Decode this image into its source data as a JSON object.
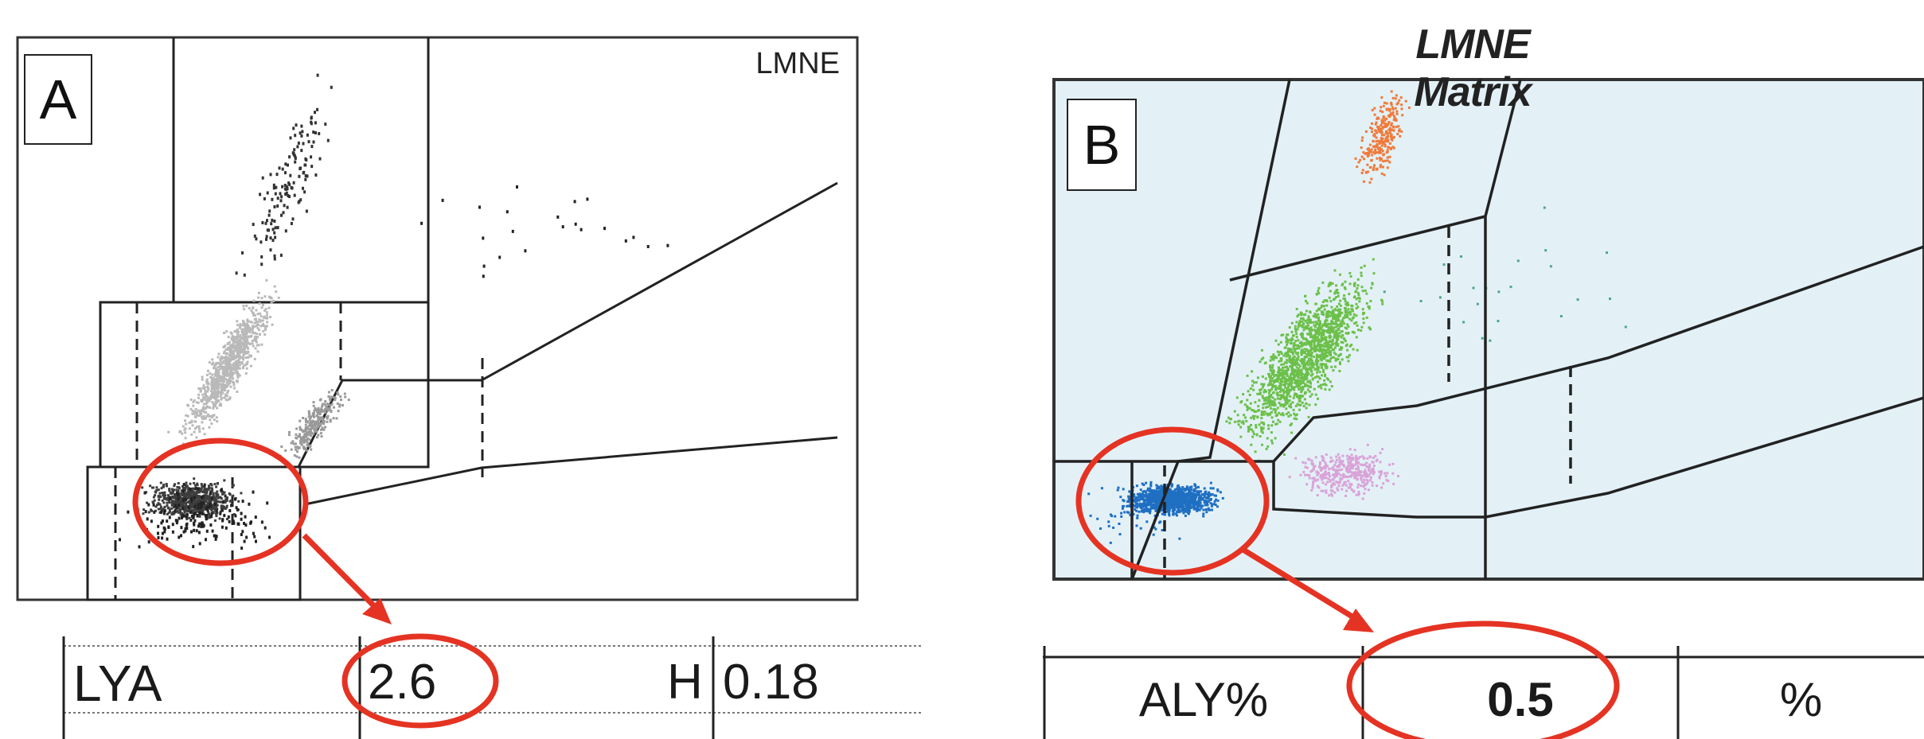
{
  "panel_a": {
    "letter": "A",
    "plot_label": "LMNE",
    "table": {
      "param": "LYA",
      "value": "2.6",
      "flag": "H",
      "extra": "0.18"
    }
  },
  "panel_b": {
    "letter": "B",
    "title": "LMNE Matrix",
    "table": {
      "param": "ALY%",
      "value": "0.5",
      "unit": "%"
    }
  },
  "colors": {
    "annotation_red": "#e53323",
    "matrix_background": "#e3f1f7",
    "cluster_orange": "#f07a3a",
    "cluster_green": "#6cc04a",
    "cluster_blue": "#1f6fc2",
    "cluster_pink": "#d9a3d8",
    "cluster_gray_light": "#b9b9b9",
    "cluster_gray_dark": "#3d3d3d"
  }
}
